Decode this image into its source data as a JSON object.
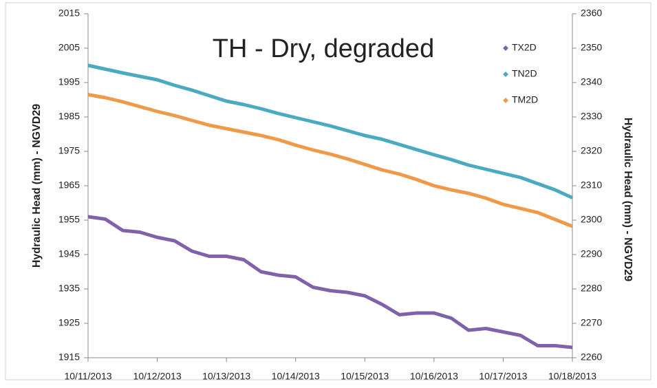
{
  "chart_data": {
    "type": "line",
    "title": "TH - Dry, degraded",
    "y_label": "Hydraulic Head (mm) - NGVD29",
    "y2_label": "Hydraulic Head (mm) - NGVD29",
    "categories": [
      "10/11/2013",
      null,
      null,
      null,
      "10/12/2013",
      null,
      null,
      null,
      "10/13/2013",
      null,
      null,
      null,
      "10/14/2013",
      null,
      null,
      null,
      "10/15/2013",
      null,
      null,
      null,
      "10/16/2013",
      null,
      null,
      null,
      "10/17/2013",
      null,
      null,
      null,
      "10/18/2013"
    ],
    "ylim": [
      1915,
      2015
    ],
    "yticks": [
      1915,
      1925,
      1935,
      1945,
      1955,
      1965,
      1975,
      1985,
      1995,
      2005,
      2015
    ],
    "y2lim": [
      2260,
      2360
    ],
    "y2ticks": [
      2260,
      2270,
      2280,
      2290,
      2300,
      2310,
      2320,
      2330,
      2340,
      2350,
      2360
    ],
    "legend": "upper right",
    "series": [
      {
        "name": "TX2D",
        "color": "#7f62aa",
        "axis": "y2",
        "values": [
          2301,
          2300.3,
          2297,
          2296.5,
          2295,
          2294,
          2291,
          2289.5,
          2289.5,
          2288.5,
          2285,
          2284,
          2283.5,
          2280.5,
          2279.5,
          2279,
          2278,
          2275.5,
          2272.5,
          2273,
          2273,
          2271.5,
          2268,
          2268.5,
          2267.5,
          2266.5,
          2263.5,
          2263.5,
          2263
        ]
      },
      {
        "name": "TN2D",
        "color": "#4aaabf",
        "values": [
          2000,
          1998.9,
          1997.8,
          1996.8,
          1995.8,
          1994.2,
          1992.8,
          1991.2,
          1989.6,
          1988.6,
          1987.4,
          1986,
          1984.8,
          1983.6,
          1982.4,
          1981,
          1979.6,
          1978.5,
          1977,
          1975.5,
          1974,
          1972.6,
          1971,
          1969.8,
          1968.6,
          1967.4,
          1965.6,
          1963.8,
          1961.5
        ]
      },
      {
        "name": "TM2D",
        "color": "#ef9a48",
        "values": [
          1991.5,
          1990.6,
          1989.4,
          1988,
          1986.6,
          1985.4,
          1984,
          1982.6,
          1981.6,
          1980.6,
          1979.6,
          1978.4,
          1976.8,
          1975.4,
          1974.2,
          1972.8,
          1971.2,
          1969.6,
          1968.4,
          1966.8,
          1965,
          1963.8,
          1962.8,
          1961.4,
          1959.6,
          1958.4,
          1957.2,
          1955.2,
          1953.2
        ]
      }
    ]
  }
}
